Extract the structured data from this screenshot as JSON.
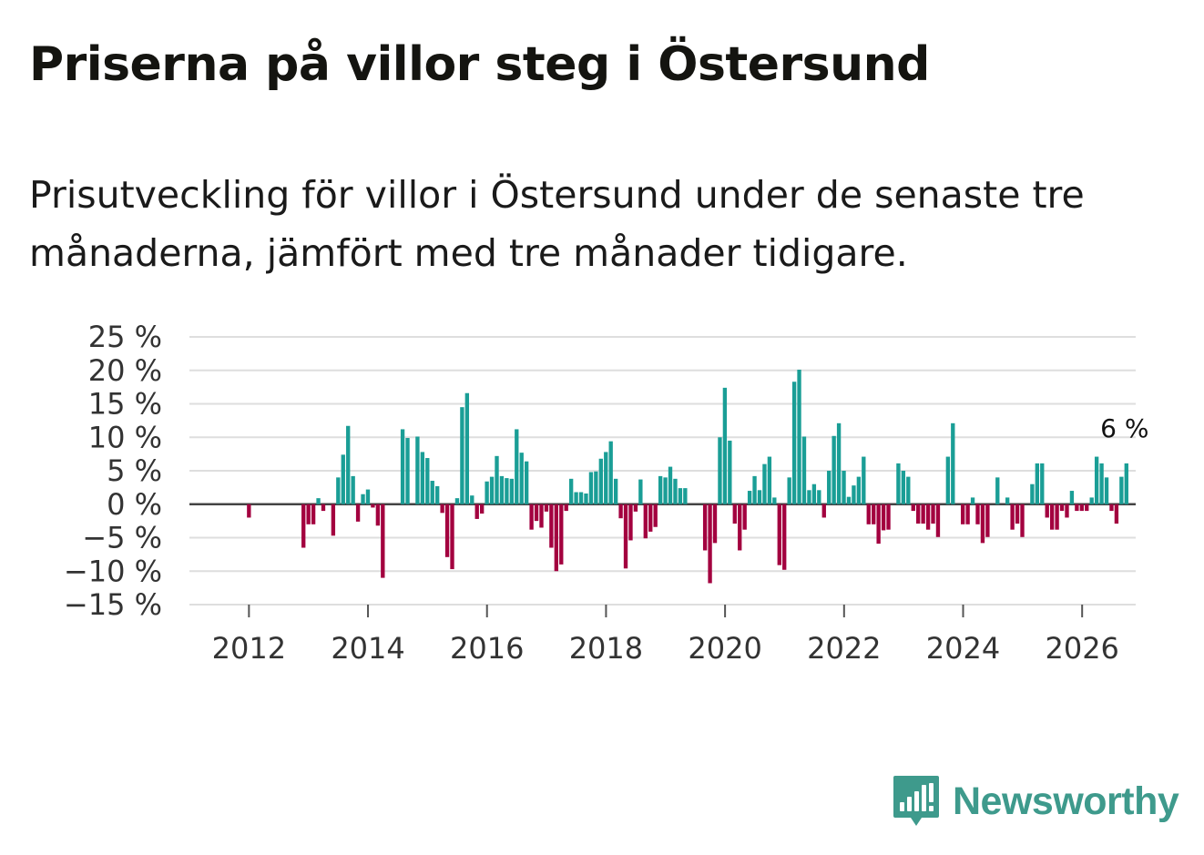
{
  "title": "Priserna på villor steg i Östersund",
  "subtitle": "Prisutveckling för villor i Östersund under de senaste tre månaderna, jämfört med tre månader tidigare.",
  "chart_data": {
    "type": "bar",
    "title": "Priserna på villor steg i Östersund",
    "subtitle": "Prisutveckling för villor i Östersund under de senaste tre månaderna, jämfört med tre månader tidigare.",
    "xlabel": "",
    "ylabel": "",
    "x_start": 2011.75,
    "x_step": 0.0833,
    "xlim": [
      2011.0,
      2026.9
    ],
    "ylim": [
      -15,
      25
    ],
    "yticks": [
      25,
      20,
      15,
      10,
      5,
      0,
      -5,
      -10,
      -15
    ],
    "ytick_labels": [
      "25 %",
      "20 %",
      "15 %",
      "10 %",
      "5 %",
      "0 %",
      "−5 %",
      "−10 %",
      "−15 %"
    ],
    "xticks": [
      2012,
      2014,
      2016,
      2018,
      2020,
      2022,
      2024,
      2026
    ],
    "xtick_labels": [
      "2012",
      "2014",
      "2016",
      "2018",
      "2020",
      "2022",
      "2024",
      "2026"
    ],
    "grid": true,
    "positive_color": "#1a9e96",
    "negative_color": "#a3003f",
    "annotation": {
      "text": "6 %",
      "target": "last-bar"
    },
    "values": [
      0,
      0,
      0,
      -2,
      0,
      0,
      0,
      0,
      0,
      0,
      0,
      0,
      0,
      0,
      -6.5,
      -3,
      -3,
      0.9,
      -1,
      0,
      -4.7,
      4,
      7.4,
      11.7,
      4.2,
      -2.6,
      1.5,
      2.2,
      -0.5,
      -3.2,
      -11,
      0,
      0,
      0,
      11.2,
      9.9,
      0,
      10.1,
      7.8,
      6.9,
      3.5,
      2.7,
      -1.3,
      -7.9,
      -9.7,
      0.9,
      14.5,
      16.6,
      1.3,
      -2.2,
      -1.4,
      3.4,
      4.1,
      7.2,
      4.2,
      3.9,
      3.8,
      11.2,
      7.7,
      6.4,
      -3.8,
      -2.5,
      -3.5,
      -1.1,
      -6.5,
      -10,
      -9,
      -1,
      3.8,
      1.8,
      1.8,
      1.6,
      4.8,
      4.9,
      6.8,
      7.8,
      9.4,
      3.8,
      -2.1,
      -9.6,
      -5.4,
      -1.1,
      3.7,
      -5.1,
      -4.1,
      -3.4,
      4.2,
      4,
      5.6,
      3.8,
      2.4,
      2.4,
      0,
      0,
      0,
      -6.9,
      -11.8,
      -5.8,
      10,
      17.4,
      9.5,
      -2.9,
      -6.9,
      -3.8,
      2,
      4.2,
      2.1,
      6,
      7.1,
      1,
      -9.1,
      -9.8,
      4,
      18.3,
      20.1,
      10.1,
      2.1,
      3,
      2.1,
      -2,
      5,
      10.2,
      12.1,
      5,
      1.1,
      2.8,
      4.1,
      7.1,
      -3,
      -3,
      -5.9,
      -3.9,
      -3.8,
      0,
      6.1,
      5,
      4.1,
      -1,
      -2.9,
      -2.9,
      -3.8,
      -2.9,
      -4.9,
      0,
      7.1,
      12.1,
      0,
      -3,
      -3,
      1,
      -3,
      -5.8,
      -4.9,
      0,
      4,
      0,
      1,
      -3.8,
      -2.9,
      -4.9,
      0,
      3,
      6.1,
      6.1,
      -2,
      -3.8,
      -3.8,
      -1,
      -2,
      2,
      -1,
      -1,
      -1,
      1,
      7.1,
      6.1,
      4,
      -1,
      -2.9,
      4.1,
      6.1
    ]
  },
  "brand": {
    "name": "Newsworthy",
    "color": "#3e9a8c"
  },
  "icons": {
    "logo": "bar-chart-speech-bubble-icon"
  }
}
